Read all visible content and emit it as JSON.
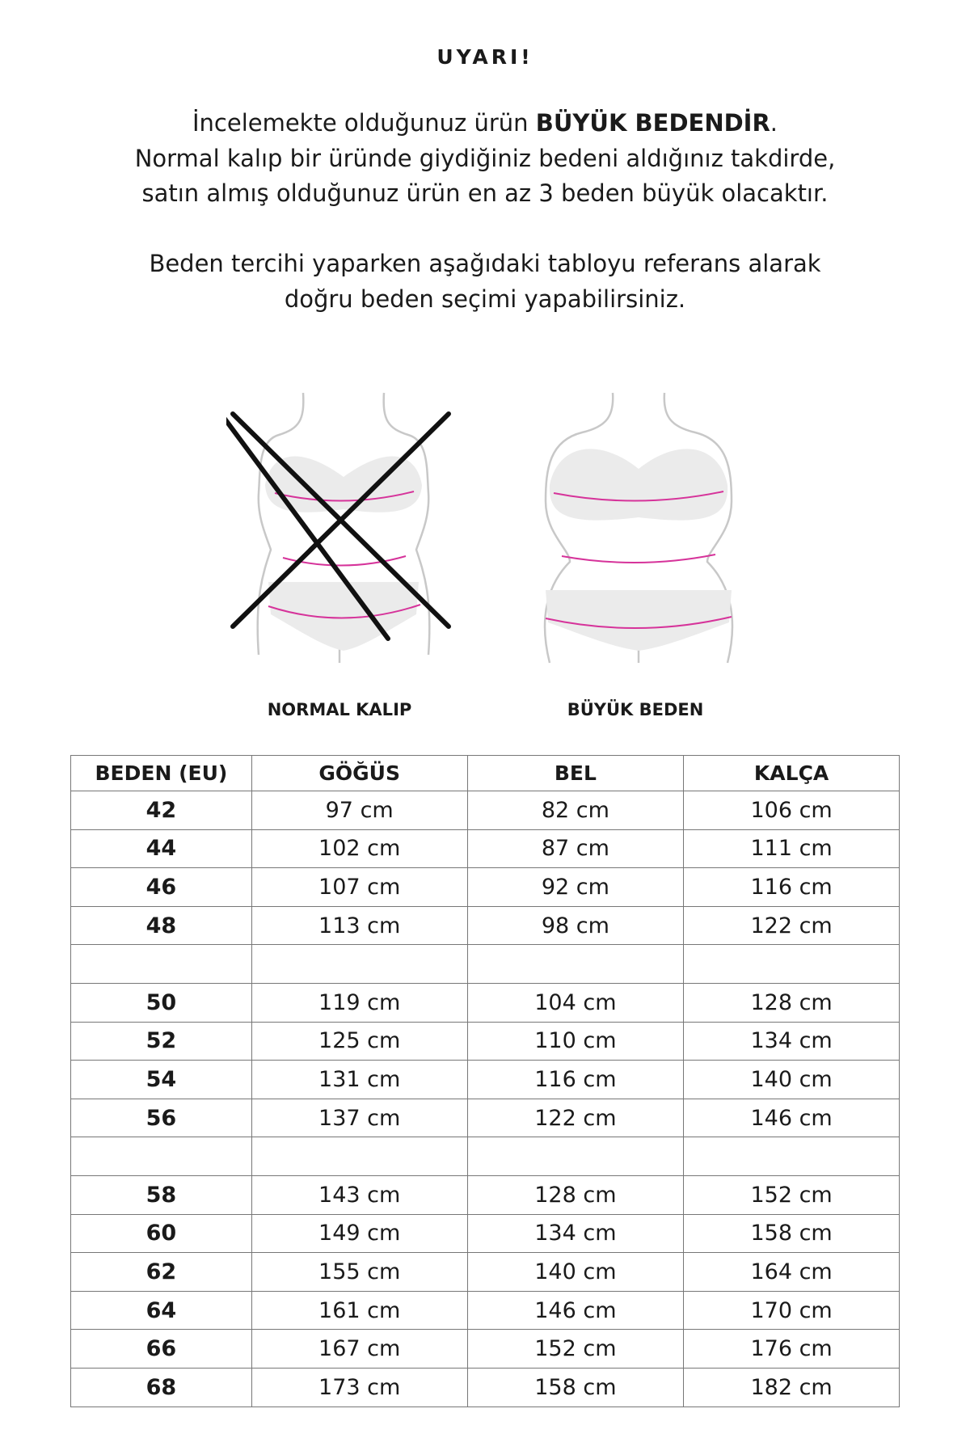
{
  "warning": {
    "title": "UYARI!",
    "line1_pre": "İncelemekte olduğunuz ürün ",
    "line1_bold": "BÜYÜK BEDENDİR",
    "line1_post": ".",
    "line2": "Normal kalıp bir üründe giydiğiniz bedeni aldığınız takdirde,",
    "line3": "satın almış olduğunuz ürün en az 3 beden büyük olacaktır.",
    "line4": "Beden tercihi yaparken aşağıdaki tabloyu referans alarak",
    "line5": "doğru beden seçimi yapabilirsiniz."
  },
  "figures": {
    "normal_label": "NORMAL KALIP",
    "plus_label": "BÜYÜK BEDEN",
    "arrow_color": "#d6339a"
  },
  "table": {
    "headers": [
      "BEDEN (EU)",
      "GÖĞÜS",
      "BEL",
      "KALÇA"
    ],
    "rows": [
      [
        "42",
        "97 cm",
        "82 cm",
        "106 cm"
      ],
      [
        "44",
        "102 cm",
        "87 cm",
        "111 cm"
      ],
      [
        "46",
        "107 cm",
        "92 cm",
        "116 cm"
      ],
      [
        "48",
        "113 cm",
        "98 cm",
        "122 cm"
      ],
      [
        "",
        "",
        "",
        ""
      ],
      [
        "50",
        "119 cm",
        "104 cm",
        "128 cm"
      ],
      [
        "52",
        "125 cm",
        "110 cm",
        "134 cm"
      ],
      [
        "54",
        "131 cm",
        "116 cm",
        "140 cm"
      ],
      [
        "56",
        "137 cm",
        "122 cm",
        "146 cm"
      ],
      [
        "",
        "",
        "",
        ""
      ],
      [
        "58",
        "143 cm",
        "128 cm",
        "152 cm"
      ],
      [
        "60",
        "149 cm",
        "134 cm",
        "158 cm"
      ],
      [
        "62",
        "155 cm",
        "140 cm",
        "164 cm"
      ],
      [
        "64",
        "161 cm",
        "146 cm",
        "170 cm"
      ],
      [
        "66",
        "167 cm",
        "152 cm",
        "176 cm"
      ],
      [
        "68",
        "173 cm",
        "158 cm",
        "182 cm"
      ]
    ]
  }
}
